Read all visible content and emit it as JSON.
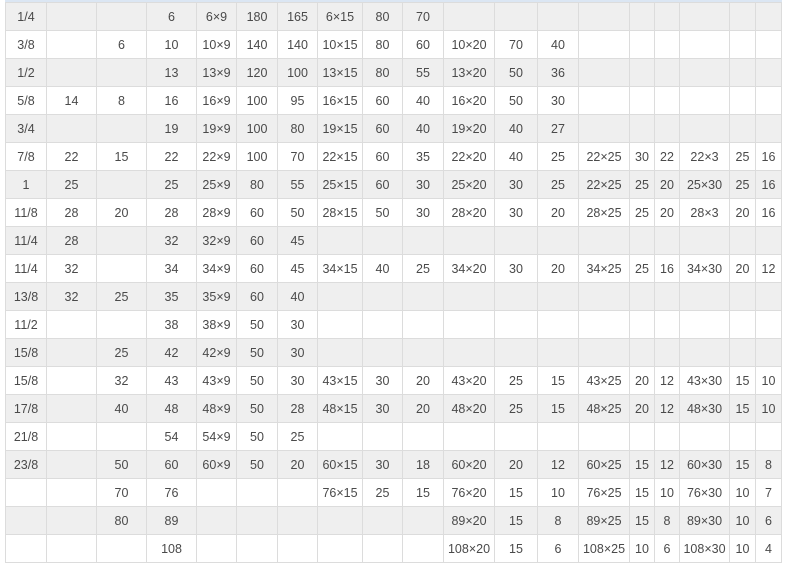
{
  "table": {
    "rows": [
      [
        "1/4",
        "",
        "",
        "6",
        "6×9",
        "180",
        "165",
        "6×15",
        "80",
        "70",
        "",
        "",
        "",
        "",
        "",
        "",
        "",
        "",
        ""
      ],
      [
        "3/8",
        "",
        "6",
        "10",
        "10×9",
        "140",
        "140",
        "10×15",
        "80",
        "60",
        "10×20",
        "70",
        "40",
        "",
        "",
        "",
        "",
        "",
        ""
      ],
      [
        "1/2",
        "",
        "",
        "13",
        "13×9",
        "120",
        "100",
        "13×15",
        "80",
        "55",
        "13×20",
        "50",
        "36",
        "",
        "",
        "",
        "",
        "",
        ""
      ],
      [
        "5/8",
        "14",
        "8",
        "16",
        "16×9",
        "100",
        "95",
        "16×15",
        "60",
        "40",
        "16×20",
        "50",
        "30",
        "",
        "",
        "",
        "",
        "",
        ""
      ],
      [
        "3/4",
        "",
        "",
        "19",
        "19×9",
        "100",
        "80",
        "19×15",
        "60",
        "40",
        "19×20",
        "40",
        "27",
        "",
        "",
        "",
        "",
        "",
        ""
      ],
      [
        "7/8",
        "22",
        "15",
        "22",
        "22×9",
        "100",
        "70",
        "22×15",
        "60",
        "35",
        "22×20",
        "40",
        "25",
        "22×25",
        "30",
        "22",
        "22×3",
        "25",
        "16"
      ],
      [
        "1",
        "25",
        "",
        "25",
        "25×9",
        "80",
        "55",
        "25×15",
        "60",
        "30",
        "25×20",
        "30",
        "25",
        "22×25",
        "25",
        "20",
        "25×30",
        "25",
        "16"
      ],
      [
        "11/8",
        "28",
        "20",
        "28",
        "28×9",
        "60",
        "50",
        "28×15",
        "50",
        "30",
        "28×20",
        "30",
        "20",
        "28×25",
        "25",
        "20",
        "28×3",
        "20",
        "16"
      ],
      [
        "11/4",
        "28",
        "",
        "32",
        "32×9",
        "60",
        "45",
        "",
        "",
        "",
        "",
        "",
        "",
        "",
        "",
        "",
        "",
        "",
        ""
      ],
      [
        "11/4",
        "32",
        "",
        "34",
        "34×9",
        "60",
        "45",
        "34×15",
        "40",
        "25",
        "34×20",
        "30",
        "20",
        "34×25",
        "25",
        "16",
        "34×30",
        "20",
        "12"
      ],
      [
        "13/8",
        "32",
        "25",
        "35",
        "35×9",
        "60",
        "40",
        "",
        "",
        "",
        "",
        "",
        "",
        "",
        "",
        "",
        "",
        "",
        ""
      ],
      [
        "11/2",
        "",
        "",
        "38",
        "38×9",
        "50",
        "30",
        "",
        "",
        "",
        "",
        "",
        "",
        "",
        "",
        "",
        "",
        "",
        ""
      ],
      [
        "15/8",
        "",
        "25",
        "42",
        "42×9",
        "50",
        "30",
        "",
        "",
        "",
        "",
        "",
        "",
        "",
        "",
        "",
        "",
        "",
        ""
      ],
      [
        "15/8",
        "",
        "32",
        "43",
        "43×9",
        "50",
        "30",
        "43×15",
        "30",
        "20",
        "43×20",
        "25",
        "15",
        "43×25",
        "20",
        "12",
        "43×30",
        "15",
        "10"
      ],
      [
        "17/8",
        "",
        "40",
        "48",
        "48×9",
        "50",
        "28",
        "48×15",
        "30",
        "20",
        "48×20",
        "25",
        "15",
        "48×25",
        "20",
        "12",
        "48×30",
        "15",
        "10"
      ],
      [
        "21/8",
        "",
        "",
        "54",
        "54×9",
        "50",
        "25",
        "",
        "",
        "",
        "",
        "",
        "",
        "",
        "",
        "",
        "",
        "",
        ""
      ],
      [
        "23/8",
        "",
        "50",
        "60",
        "60×9",
        "50",
        "20",
        "60×15",
        "30",
        "18",
        "60×20",
        "20",
        "12",
        "60×25",
        "15",
        "12",
        "60×30",
        "15",
        "8"
      ],
      [
        "",
        "",
        "70",
        "76",
        "",
        "",
        "",
        "76×15",
        "25",
        "15",
        "76×20",
        "15",
        "10",
        "76×25",
        "15",
        "10",
        "76×30",
        "10",
        "7"
      ],
      [
        "",
        "",
        "80",
        "89",
        "",
        "",
        "",
        "",
        "",
        "",
        "89×20",
        "15",
        "8",
        "89×25",
        "15",
        "8",
        "89×30",
        "10",
        "6"
      ],
      [
        "",
        "",
        "",
        "108",
        "",
        "",
        "",
        "",
        "",
        "",
        "108×20",
        "15",
        "6",
        "108×25",
        "10",
        "6",
        "108×30",
        "10",
        "4"
      ]
    ]
  }
}
